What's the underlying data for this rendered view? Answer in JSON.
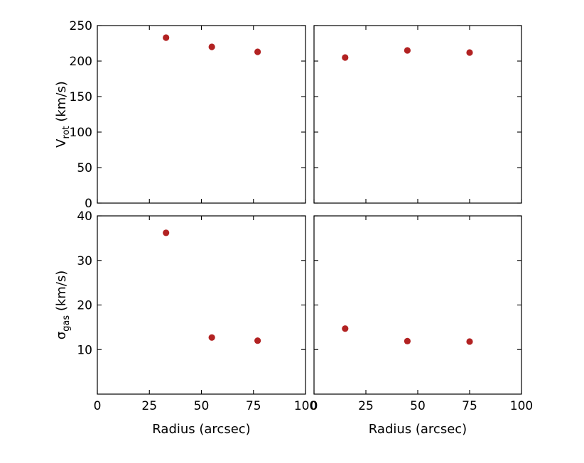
{
  "chart_data": [
    {
      "type": "scatter",
      "panel": "top-left",
      "ylabel": "V",
      "ylabel_sub": "rot",
      "ylabel_suffix": " (km/s)",
      "xlim": [
        0,
        100
      ],
      "ylim": [
        0,
        250
      ],
      "yticks": [
        0,
        50,
        100,
        150,
        200,
        250
      ],
      "xticks": [
        0,
        25,
        50,
        75,
        100
      ],
      "show_yticklabels": true,
      "show_xticklabels": false,
      "x": [
        33,
        55,
        77
      ],
      "y": [
        233,
        220,
        213
      ],
      "marker_color": "#b22222"
    },
    {
      "type": "scatter",
      "panel": "top-right",
      "xlim": [
        0,
        100
      ],
      "ylim": [
        0,
        250
      ],
      "yticks": [
        0,
        50,
        100,
        150,
        200,
        250
      ],
      "xticks": [
        0,
        25,
        50,
        75,
        100
      ],
      "show_yticklabels": false,
      "show_xticklabels": false,
      "x": [
        15,
        45,
        75
      ],
      "y": [
        205,
        215,
        212
      ],
      "marker_color": "#b22222"
    },
    {
      "type": "scatter",
      "panel": "bottom-left",
      "ylabel": "σ",
      "ylabel_sub": "gas",
      "ylabel_suffix": "  (km/s)",
      "xlabel": "Radius (arcsec)",
      "xlim": [
        0,
        100
      ],
      "ylim": [
        0,
        40
      ],
      "yticks": [
        10,
        20,
        30,
        40
      ],
      "xticks": [
        0,
        25,
        50,
        75,
        100
      ],
      "xticklabels": [
        "0",
        "25",
        "50",
        "75",
        "100"
      ],
      "show_yticklabels": true,
      "show_xticklabels": true,
      "x": [
        33,
        55,
        77
      ],
      "y": [
        36.2,
        12.7,
        12.0
      ],
      "marker_color": "#b22222"
    },
    {
      "type": "scatter",
      "panel": "bottom-right",
      "xlabel": "Radius (arcsec)",
      "xlim": [
        0,
        100
      ],
      "ylim": [
        0,
        40
      ],
      "yticks": [
        10,
        20,
        30,
        40
      ],
      "xticks": [
        0,
        25,
        50,
        75,
        100
      ],
      "xticklabels": [
        "0",
        "25",
        "50",
        "75",
        "100"
      ],
      "show_yticklabels": false,
      "show_xticklabels": true,
      "x": [
        15,
        45,
        75
      ],
      "y": [
        14.7,
        11.9,
        11.8
      ],
      "marker_color": "#b22222"
    }
  ]
}
